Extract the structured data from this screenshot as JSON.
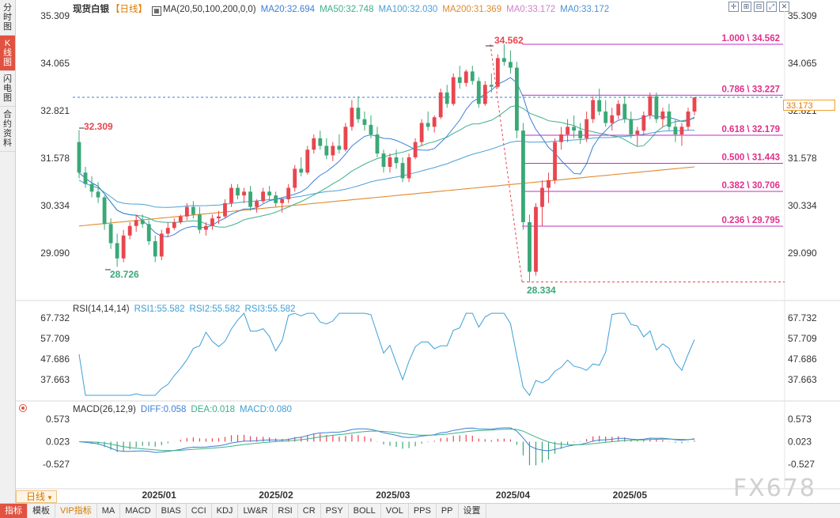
{
  "left_tabs": [
    {
      "label": "分时图",
      "active": false
    },
    {
      "label": "K线图",
      "active": true
    },
    {
      "label": "闪电图",
      "active": false
    },
    {
      "label": "合约资料",
      "active": false
    }
  ],
  "main_header": {
    "symbol": "现货白银",
    "period": "【日线】",
    "ma_icon": "grid-icon",
    "ma_params": "MA(20,50,100,200,0,0)",
    "ma20": "MA20:32.694",
    "ma50": "MA50:32.748",
    "ma100": "MA100:32.030",
    "ma200": "MA200:31.369",
    "ma0a": "MA0:33.172",
    "ma0b": "MA0:33.172"
  },
  "price_axis": [
    "35.309",
    "34.065",
    "32.821",
    "31.578",
    "30.334",
    "29.090"
  ],
  "current_price": "33.173",
  "annotations": {
    "high": "34.562",
    "low": "28.334",
    "left_high": "32.309",
    "left_low": "28.726"
  },
  "fibonacci": [
    {
      "ratio": "1.000",
      "value": "34.562"
    },
    {
      "ratio": "0.786",
      "value": "33.227"
    },
    {
      "ratio": "0.618",
      "value": "32.179"
    },
    {
      "ratio": "0.500",
      "value": "31.443"
    },
    {
      "ratio": "0.382",
      "value": "30.706"
    },
    {
      "ratio": "0.236",
      "value": "29.795"
    }
  ],
  "rsi_header": {
    "title": "RSI(14,14,14)",
    "rsi1": "RSI1:55.582",
    "rsi2": "RSI2:55.582",
    "rsi3": "RSI3:55.582"
  },
  "rsi_axis": [
    "67.732",
    "57.709",
    "47.686",
    "37.663"
  ],
  "macd_header": {
    "title": "MACD(26,12,9)",
    "diff": "DIFF:0.058",
    "dea": "DEA:0.018",
    "macd": "MACD:0.080"
  },
  "macd_axis": [
    "0.573",
    "0.023",
    "-0.527"
  ],
  "date_axis": [
    "2025/01",
    "2025/02",
    "2025/03",
    "2025/04",
    "2025/05"
  ],
  "period_selector": "日线",
  "bottom_tabs": [
    "指标",
    "模板",
    "VIP指标",
    "MA",
    "MACD",
    "BIAS",
    "CCI",
    "KDJ",
    "LW&R",
    "RSI",
    "CR",
    "PSY",
    "BOLL",
    "VOL",
    "PPS",
    "PP",
    "设置"
  ],
  "watermark": "FX678",
  "colors": {
    "up": "#e8464f",
    "down": "#3aa876",
    "ma20": "#3d7fd6",
    "ma50": "#3cb08a",
    "ma100": "#4aa0d8",
    "ma200": "#e08a2e",
    "fib": "#c02fc0",
    "fib_text": "#e0308a"
  },
  "chart_data": {
    "type": "candlestick",
    "title": "现货白银 【日线】",
    "dates": [
      "2025/01",
      "2025/02",
      "2025/03",
      "2025/04",
      "2025/05"
    ],
    "ylim": [
      28.0,
      35.6
    ],
    "candles": [
      [
        32.0,
        32.31,
        31.05,
        31.2
      ],
      [
        31.2,
        31.35,
        30.8,
        30.9
      ],
      [
        30.9,
        31.1,
        30.55,
        30.7
      ],
      [
        30.7,
        30.95,
        30.4,
        30.55
      ],
      [
        30.55,
        30.6,
        29.7,
        29.85
      ],
      [
        29.85,
        30.0,
        29.2,
        29.35
      ],
      [
        29.35,
        29.6,
        28.73,
        28.95
      ],
      [
        28.95,
        29.7,
        28.85,
        29.55
      ],
      [
        29.55,
        29.9,
        29.45,
        29.8
      ],
      [
        29.8,
        30.1,
        29.65,
        29.95
      ],
      [
        29.95,
        30.1,
        29.75,
        29.85
      ],
      [
        29.85,
        29.95,
        29.3,
        29.4
      ],
      [
        29.4,
        29.55,
        28.85,
        29.0
      ],
      [
        29.0,
        29.7,
        28.9,
        29.6
      ],
      [
        29.6,
        29.9,
        29.5,
        29.75
      ],
      [
        29.75,
        30.0,
        29.7,
        29.9
      ],
      [
        29.9,
        30.1,
        29.85,
        30.05
      ],
      [
        30.05,
        30.4,
        29.95,
        30.3
      ],
      [
        30.3,
        30.45,
        30.0,
        30.1
      ],
      [
        30.1,
        30.3,
        29.6,
        29.7
      ],
      [
        29.7,
        29.9,
        29.55,
        29.8
      ],
      [
        29.8,
        30.1,
        29.7,
        30.0
      ],
      [
        30.0,
        30.2,
        29.85,
        30.05
      ],
      [
        30.05,
        30.5,
        30.0,
        30.4
      ],
      [
        30.4,
        30.9,
        30.3,
        30.8
      ],
      [
        30.8,
        30.9,
        30.5,
        30.6
      ],
      [
        30.6,
        30.8,
        30.4,
        30.7
      ],
      [
        30.7,
        30.85,
        30.2,
        30.3
      ],
      [
        30.3,
        30.5,
        30.15,
        30.45
      ],
      [
        30.45,
        30.8,
        30.4,
        30.7
      ],
      [
        30.7,
        30.85,
        30.45,
        30.6
      ],
      [
        30.6,
        30.7,
        30.3,
        30.4
      ],
      [
        30.4,
        30.55,
        30.15,
        30.5
      ],
      [
        30.5,
        30.9,
        30.4,
        30.8
      ],
      [
        30.8,
        31.4,
        30.7,
        31.3
      ],
      [
        31.3,
        31.6,
        31.1,
        31.2
      ],
      [
        31.2,
        31.9,
        31.15,
        31.8
      ],
      [
        31.8,
        32.2,
        31.7,
        32.1
      ],
      [
        32.1,
        32.3,
        31.8,
        31.9
      ],
      [
        31.9,
        32.1,
        31.55,
        31.65
      ],
      [
        31.65,
        32.0,
        31.5,
        31.9
      ],
      [
        31.9,
        32.2,
        31.7,
        31.8
      ],
      [
        31.8,
        32.5,
        31.75,
        32.4
      ],
      [
        32.4,
        33.1,
        32.3,
        32.9
      ],
      [
        32.9,
        33.2,
        32.5,
        32.6
      ],
      [
        32.6,
        32.8,
        32.3,
        32.45
      ],
      [
        32.45,
        32.7,
        32.1,
        32.2
      ],
      [
        32.2,
        32.4,
        31.6,
        31.7
      ],
      [
        31.7,
        31.8,
        31.2,
        31.35
      ],
      [
        31.35,
        31.7,
        31.2,
        31.6
      ],
      [
        31.6,
        31.8,
        31.3,
        31.45
      ],
      [
        31.45,
        31.6,
        30.95,
        31.05
      ],
      [
        31.05,
        31.7,
        30.95,
        31.6
      ],
      [
        31.6,
        32.1,
        31.55,
        32.0
      ],
      [
        32.0,
        32.6,
        31.9,
        32.5
      ],
      [
        32.5,
        32.8,
        32.3,
        32.4
      ],
      [
        32.4,
        32.7,
        32.25,
        32.65
      ],
      [
        32.65,
        33.4,
        32.6,
        33.3
      ],
      [
        33.3,
        33.5,
        32.9,
        33.0
      ],
      [
        33.0,
        33.8,
        32.95,
        33.7
      ],
      [
        33.7,
        34.0,
        33.4,
        33.55
      ],
      [
        33.55,
        33.9,
        33.45,
        33.85
      ],
      [
        33.85,
        34.0,
        33.5,
        33.6
      ],
      [
        33.6,
        33.7,
        32.9,
        33.0
      ],
      [
        33.0,
        33.6,
        32.95,
        33.5
      ],
      [
        33.5,
        33.8,
        33.3,
        33.45
      ],
      [
        33.45,
        34.3,
        33.4,
        34.2
      ],
      [
        34.2,
        34.56,
        34.0,
        34.1
      ],
      [
        34.1,
        34.4,
        33.8,
        33.95
      ],
      [
        33.95,
        34.1,
        32.1,
        32.3
      ],
      [
        32.3,
        32.5,
        29.7,
        29.9
      ],
      [
        29.9,
        30.1,
        28.33,
        28.6
      ],
      [
        28.6,
        30.4,
        28.5,
        30.3
      ],
      [
        30.3,
        31.0,
        29.8,
        30.8
      ],
      [
        30.8,
        31.2,
        30.4,
        31.0
      ],
      [
        31.0,
        32.1,
        30.9,
        32.0
      ],
      [
        32.0,
        32.4,
        31.8,
        32.2
      ],
      [
        32.2,
        32.6,
        32.0,
        32.4
      ],
      [
        32.4,
        32.7,
        32.1,
        32.3
      ],
      [
        32.3,
        32.5,
        31.95,
        32.1
      ],
      [
        32.1,
        32.8,
        32.0,
        32.6
      ],
      [
        32.6,
        33.2,
        32.5,
        33.1
      ],
      [
        33.1,
        33.4,
        32.7,
        32.8
      ],
      [
        32.8,
        33.1,
        32.4,
        32.5
      ],
      [
        32.5,
        32.9,
        32.3,
        32.7
      ],
      [
        32.7,
        33.1,
        32.6,
        33.0
      ],
      [
        33.0,
        33.2,
        32.5,
        32.6
      ],
      [
        32.6,
        32.8,
        32.1,
        32.2
      ],
      [
        32.2,
        32.4,
        31.9,
        32.3
      ],
      [
        32.3,
        32.8,
        32.2,
        32.7
      ],
      [
        32.7,
        33.3,
        32.6,
        33.2
      ],
      [
        33.2,
        33.3,
        32.5,
        32.6
      ],
      [
        32.6,
        32.9,
        32.4,
        32.8
      ],
      [
        32.8,
        33.0,
        32.3,
        32.4
      ],
      [
        32.4,
        32.6,
        32.0,
        32.2
      ],
      [
        32.2,
        32.5,
        31.9,
        32.4
      ],
      [
        32.4,
        32.9,
        32.3,
        32.8
      ],
      [
        32.8,
        33.1,
        32.7,
        33.17
      ]
    ]
  }
}
